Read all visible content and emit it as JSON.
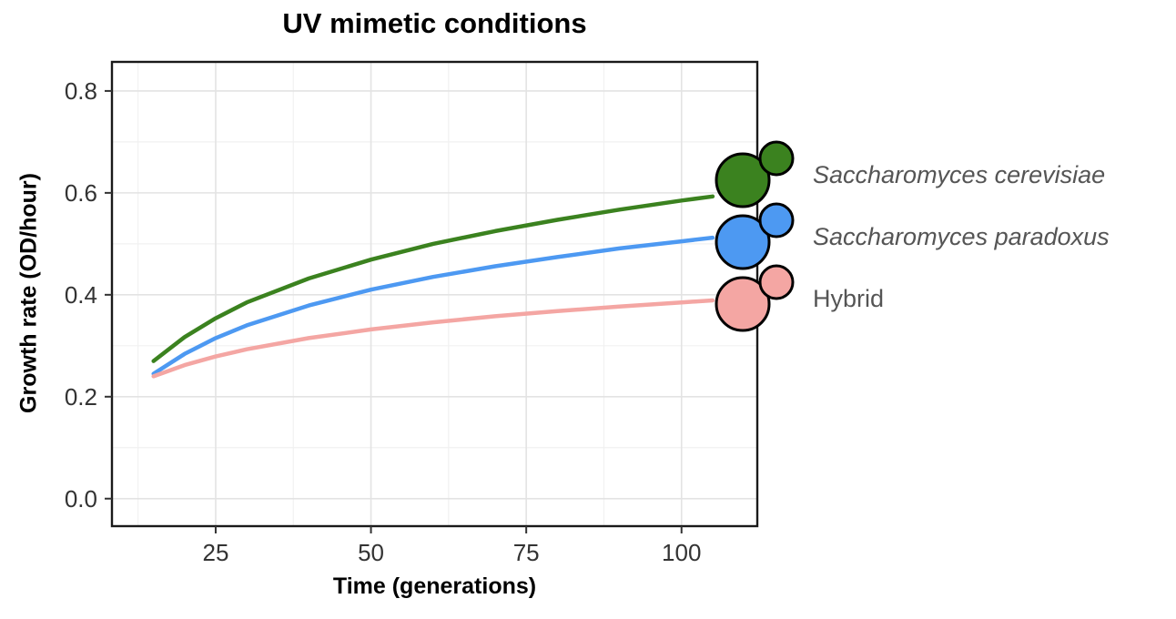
{
  "chart_data": {
    "type": "line",
    "title": "UV mimetic conditions",
    "xlabel": "Time (generations)",
    "ylabel": "Growth rate (OD/hour)",
    "xlim": [
      8.3,
      112.2
    ],
    "ylim": [
      -0.054,
      0.857
    ],
    "x_ticks": [
      25,
      50,
      75,
      100
    ],
    "x_tick_labels": [
      "25",
      "50",
      "75",
      "100"
    ],
    "y_ticks": [
      0,
      0.2,
      0.4,
      0.6,
      0.8
    ],
    "y_tick_labels": [
      "0.0",
      "0.2",
      "0.4",
      "0.6",
      "0.8"
    ],
    "x_minor_ticks": [
      12.5,
      37.5,
      62.5,
      87.5
    ],
    "y_minor_ticks": [
      0.1,
      0.3,
      0.5,
      0.7
    ],
    "grid": "major+minor",
    "legend_position": "right, overlapping panel edge",
    "x": [
      15,
      20,
      25,
      30,
      40,
      50,
      60,
      70,
      80,
      90,
      100,
      105
    ],
    "series": [
      {
        "name": "Saccharomyces cerevisiae",
        "italic": true,
        "color": "#3B821F",
        "icon": "budding-yeast-cell-icon",
        "values": [
          0.27,
          0.317,
          0.354,
          0.385,
          0.432,
          0.469,
          0.5,
          0.525,
          0.547,
          0.567,
          0.585,
          0.593
        ]
      },
      {
        "name": "Saccharomyces paradoxus",
        "italic": true,
        "color": "#4D99F2",
        "icon": "budding-yeast-cell-icon",
        "values": [
          0.245,
          0.284,
          0.315,
          0.34,
          0.379,
          0.41,
          0.435,
          0.456,
          0.474,
          0.491,
          0.505,
          0.512
        ]
      },
      {
        "name": "Hybrid",
        "italic": false,
        "color": "#F4A6A3",
        "icon": "budding-yeast-cell-icon",
        "values": [
          0.24,
          0.262,
          0.279,
          0.293,
          0.315,
          0.332,
          0.346,
          0.358,
          0.368,
          0.377,
          0.385,
          0.389
        ]
      }
    ],
    "colors": {
      "panel_background": "#FFFFFF",
      "panel_border": "#1A1A1A",
      "grid_major": "#E3E3E3",
      "grid_minor": "#F1F1F1",
      "tick_text": "#333333",
      "legend_text": "#555555"
    }
  }
}
